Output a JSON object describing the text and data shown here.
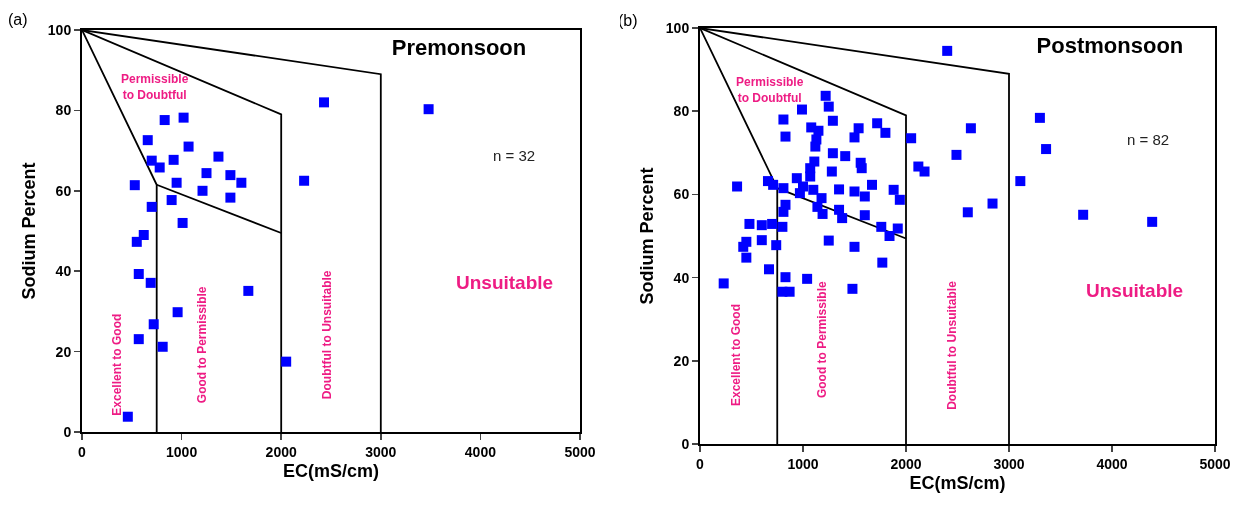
{
  "chart_data": [
    {
      "type": "scatter",
      "title": "Premonsoon",
      "xlabel": "EC(mS/cm)",
      "ylabel": "Sodium Percent",
      "xlim": [
        0,
        5000
      ],
      "ylim": [
        0,
        100
      ],
      "xticks": [
        0,
        1000,
        2000,
        3000,
        4000,
        5000
      ],
      "yticks": [
        0,
        20,
        40,
        60,
        80,
        100
      ],
      "grid": false,
      "marker": "square",
      "annotations": [
        "(a)",
        "Permissible\nto Doubtful",
        "Excellent to Good",
        "Good to Permissible",
        "Doubtful to Unsuitable",
        "Unsuitable",
        "n = 32"
      ],
      "series": [
        {
          "type": "line",
          "color": "#000000",
          "marker": "none",
          "x": [
            0,
            750,
            750
          ],
          "values": [
            100,
            61.5,
            0
          ]
        },
        {
          "type": "line",
          "color": "#000000",
          "marker": "none",
          "x": [
            750,
            2000
          ],
          "values": [
            61.5,
            49.5
          ]
        },
        {
          "type": "line",
          "color": "#000000",
          "marker": "none",
          "x": [
            0,
            2000,
            2000
          ],
          "values": [
            100,
            79,
            0
          ]
        },
        {
          "type": "line",
          "color": "#000000",
          "marker": "none",
          "x": [
            0,
            3000,
            3000
          ],
          "values": [
            100,
            89,
            0
          ]
        },
        {
          "type": "scatter",
          "color": "#0000ff",
          "x": [
            2430,
            830,
            1020,
            660,
            1070,
            1370,
            700,
            920,
            780,
            1250,
            1490,
            1600,
            2230,
            530,
            950,
            1210,
            1490,
            900,
            700,
            1010,
            620,
            550,
            570,
            690,
            1670,
            960,
            720,
            570,
            810,
            2050,
            460,
            3480
          ],
          "values": [
            82,
            77.6,
            78.2,
            72.6,
            71,
            68.5,
            67.5,
            67.7,
            65.8,
            64.4,
            63.9,
            62,
            62.5,
            61.4,
            62,
            60,
            58.3,
            57.7,
            56,
            52,
            49,
            47.3,
            39.3,
            37.1,
            35.1,
            29.8,
            26.8,
            23.1,
            21.2,
            17.5,
            3.8,
            80.3
          ]
        }
      ]
    },
    {
      "type": "scatter",
      "title": "Postmonsoon",
      "xlabel": "EC(mS/cm)",
      "ylabel": "Sodium Percent",
      "xlim": [
        0,
        5000
      ],
      "ylim": [
        0,
        100
      ],
      "xticks": [
        0,
        1000,
        2000,
        3000,
        4000,
        5000
      ],
      "yticks": [
        0,
        20,
        40,
        60,
        80,
        100
      ],
      "grid": false,
      "marker": "square",
      "annotations": [
        "(b)",
        "Permissible\nto Doubtful",
        "Excellent to Good",
        "Good to Permissible",
        "Doubtful to Unsuitable",
        "Unsuitable",
        "n = 82"
      ],
      "series": [
        {
          "type": "line",
          "color": "#000000",
          "marker": "none",
          "x": [
            0,
            750,
            750
          ],
          "values": [
            100,
            61.5,
            0
          ]
        },
        {
          "type": "line",
          "color": "#000000",
          "marker": "none",
          "x": [
            750,
            2000
          ],
          "values": [
            61.5,
            49.4
          ]
        },
        {
          "type": "line",
          "color": "#000000",
          "marker": "none",
          "x": [
            0,
            2000,
            2000
          ],
          "values": [
            100,
            79,
            0
          ]
        },
        {
          "type": "line",
          "color": "#000000",
          "marker": "none",
          "x": [
            0,
            3000,
            3000
          ],
          "values": [
            100,
            89,
            0
          ]
        },
        {
          "type": "scatter",
          "color": "#0000ff",
          "x": [
            1220,
            1250,
            990,
            810,
            1290,
            1080,
            1150,
            1540,
            1720,
            1800,
            1500,
            830,
            1130,
            1120,
            2050,
            1290,
            1410,
            1110,
            1560,
            1570,
            1070,
            2120,
            2180,
            1280,
            940,
            1070,
            360,
            660,
            710,
            810,
            1000,
            1670,
            1880,
            1350,
            1500,
            1600,
            1940,
            970,
            1100,
            1180,
            830,
            810,
            1140,
            1190,
            1350,
            1380,
            1600,
            480,
            600,
            700,
            800,
            1760,
            1920,
            1840,
            450,
            420,
            600,
            740,
            1250,
            1500,
            450,
            670,
            1770,
            830,
            1040,
            230,
            800,
            870,
            1480,
            2400,
            2630,
            2490,
            3300,
            3360,
            3110,
            2840,
            2600,
            3720,
            4390
          ],
          "values": [
            83.7,
            81.1,
            80.4,
            78,
            77.7,
            76.1,
            75.3,
            75.9,
            77.1,
            74.8,
            73.7,
            73.9,
            73.2,
            71.5,
            73.5,
            69.9,
            69.2,
            67.9,
            67.6,
            66.3,
            66.3,
            66.7,
            65.5,
            65.5,
            63.9,
            64.3,
            61.9,
            63.2,
            62.3,
            61.5,
            61.9,
            62.3,
            61.1,
            61.2,
            60.7,
            59.5,
            58.7,
            60.3,
            61.1,
            59.1,
            57.5,
            55.8,
            57,
            55.3,
            56.3,
            54.3,
            55,
            52.9,
            52.6,
            52.9,
            52.2,
            52.2,
            51.8,
            50,
            48.6,
            47.4,
            49,
            47.8,
            48.9,
            47.4,
            44.8,
            42,
            43.6,
            40.1,
            39.7,
            38.6,
            36.6,
            36.6,
            37.3,
            94.5,
            75.9,
            69.5,
            78.4,
            70.9,
            63.2,
            57.8,
            55.7,
            55.1,
            53.4
          ]
        }
      ]
    }
  ]
}
